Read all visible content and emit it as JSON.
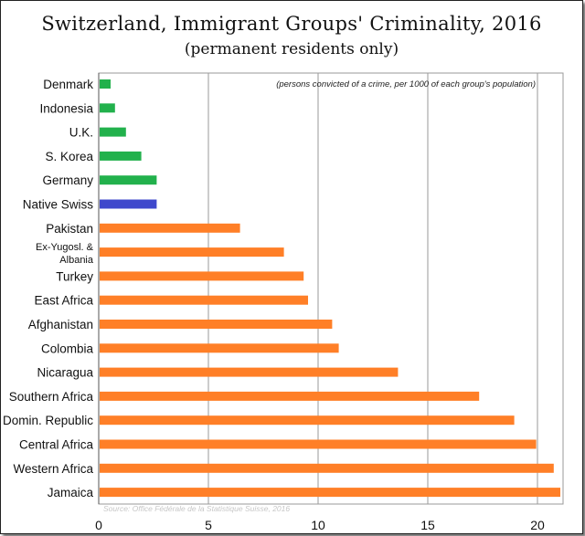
{
  "chart_data": {
    "type": "bar",
    "orientation": "horizontal",
    "title": "Switzerland, Immigrant Groups' Criminality, 2016",
    "subtitle": "(permanent residents only)",
    "annotation": "(persons convicted of a crime, per 1000 of each group's population)",
    "source": "Source: Office Fédérale de la Statistique Suisse, 2016",
    "xlim": [
      0,
      21
    ],
    "xticks": [
      0,
      5,
      10,
      15,
      20
    ],
    "grid": true,
    "colors": {
      "green": "#22b14c",
      "blue": "#3f48cc",
      "orange": "#ff7f27"
    },
    "bars": [
      {
        "label": "Denmark",
        "value": 0.5,
        "color": "green"
      },
      {
        "label": "Indonesia",
        "value": 0.7,
        "color": "green"
      },
      {
        "label": "U.K.",
        "value": 1.2,
        "color": "green"
      },
      {
        "label": "S. Korea",
        "value": 1.9,
        "color": "green"
      },
      {
        "label": "Germany",
        "value": 2.6,
        "color": "green"
      },
      {
        "label": "Native Swiss",
        "value": 2.6,
        "color": "blue"
      },
      {
        "label": "Pakistan",
        "value": 6.4,
        "color": "orange"
      },
      {
        "label": "Ex-Yugosl. & Albania",
        "label_lines": [
          "Ex-Yugosl. &",
          "Albania"
        ],
        "value": 8.4,
        "color": "orange"
      },
      {
        "label": "Turkey",
        "value": 9.3,
        "color": "orange"
      },
      {
        "label": "East Africa",
        "value": 9.5,
        "color": "orange"
      },
      {
        "label": "Afghanistan",
        "value": 10.6,
        "color": "orange"
      },
      {
        "label": "Colombia",
        "value": 10.9,
        "color": "orange"
      },
      {
        "label": "Nicaragua",
        "value": 13.6,
        "color": "orange"
      },
      {
        "label": "Southern Africa",
        "value": 17.3,
        "color": "orange"
      },
      {
        "label": "Domin. Republic",
        "value": 18.9,
        "color": "orange"
      },
      {
        "label": "Central Africa",
        "value": 19.9,
        "color": "orange"
      },
      {
        "label": "Western Africa",
        "value": 20.7,
        "color": "orange"
      },
      {
        "label": "Jamaica",
        "value": 21.0,
        "color": "orange"
      }
    ]
  }
}
